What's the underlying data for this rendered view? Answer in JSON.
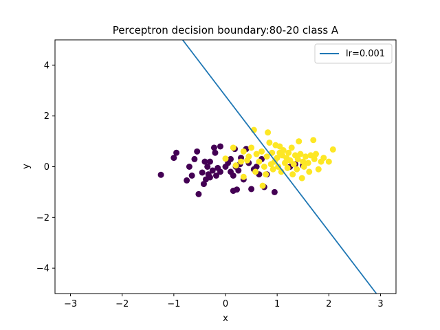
{
  "chart_data": {
    "type": "scatter",
    "title": "Perceptron decision boundary:80-20 class A",
    "xlabel": "x",
    "ylabel": "y",
    "xlim": [
      -3.3,
      3.3
    ],
    "ylim": [
      -5,
      5
    ],
    "xticks": [
      -3,
      -2,
      -1,
      0,
      1,
      2,
      3
    ],
    "xtick_labels": [
      "−3",
      "−2",
      "−1",
      "0",
      "1",
      "2",
      "3"
    ],
    "yticks": [
      -4,
      -2,
      0,
      2,
      4
    ],
    "ytick_labels": [
      "−4",
      "−2",
      "0",
      "2",
      "4"
    ],
    "grid": false,
    "legend_position": "top-right",
    "colors": {
      "class_purple": "#440154",
      "class_yellow": "#fde725",
      "line": "#1f77b4"
    },
    "line": {
      "name": "lr=0.001",
      "points": [
        [
          -0.83,
          5.0
        ],
        [
          2.92,
          -5.0
        ]
      ]
    },
    "series": [
      {
        "color": "class_purple",
        "points": [
          [
            -1.25,
            -0.32
          ],
          [
            -1.0,
            0.35
          ],
          [
            -0.95,
            0.55
          ],
          [
            -0.75,
            -0.54
          ],
          [
            -0.7,
            0.0
          ],
          [
            -0.65,
            -0.35
          ],
          [
            -0.6,
            0.3
          ],
          [
            -0.55,
            0.6
          ],
          [
            -0.52,
            -1.08
          ],
          [
            -0.45,
            -0.23
          ],
          [
            -0.42,
            -0.68
          ],
          [
            -0.4,
            0.2
          ],
          [
            -0.38,
            -0.5
          ],
          [
            -0.35,
            0.0
          ],
          [
            -0.33,
            -0.3
          ],
          [
            -0.3,
            0.2
          ],
          [
            -0.3,
            -0.42
          ],
          [
            -0.25,
            -0.15
          ],
          [
            -0.22,
            0.75
          ],
          [
            -0.2,
            0.55
          ],
          [
            -0.18,
            -0.35
          ],
          [
            -0.15,
            -0.05
          ],
          [
            -0.1,
            0.8
          ],
          [
            -0.1,
            -0.2
          ],
          [
            0.0,
            0.0
          ],
          [
            0.05,
            0.15
          ],
          [
            0.1,
            0.3
          ],
          [
            0.1,
            -0.2
          ],
          [
            0.15,
            -0.35
          ],
          [
            0.18,
            0.7
          ],
          [
            0.2,
            0.0
          ],
          [
            0.22,
            -0.9
          ],
          [
            0.25,
            -0.15
          ],
          [
            0.28,
            0.1
          ],
          [
            0.3,
            0.35
          ],
          [
            0.35,
            -0.5
          ],
          [
            0.4,
            0.7
          ],
          [
            0.45,
            0.15
          ],
          [
            0.5,
            -0.88
          ],
          [
            0.55,
            -0.1
          ],
          [
            0.6,
            0.0
          ],
          [
            0.65,
            -0.3
          ],
          [
            0.7,
            0.3
          ],
          [
            0.75,
            -0.8
          ],
          [
            0.8,
            -0.3
          ],
          [
            0.95,
            -1.0
          ],
          [
            1.25,
            0.0
          ],
          [
            1.35,
            0.1
          ],
          [
            1.5,
            0.05
          ],
          [
            0.15,
            -0.95
          ]
        ]
      },
      {
        "color": "class_yellow",
        "points": [
          [
            0.0,
            0.32
          ],
          [
            0.15,
            0.75
          ],
          [
            0.2,
            0.05
          ],
          [
            0.3,
            0.2
          ],
          [
            0.35,
            -0.4
          ],
          [
            0.42,
            0.25
          ],
          [
            0.45,
            0.4
          ],
          [
            0.5,
            0.75
          ],
          [
            0.55,
            1.45
          ],
          [
            0.6,
            0.5
          ],
          [
            0.65,
            0.2
          ],
          [
            0.7,
            0.6
          ],
          [
            0.72,
            -0.75
          ],
          [
            0.75,
            0.0
          ],
          [
            0.78,
            -0.3
          ],
          [
            0.8,
            0.4
          ],
          [
            0.82,
            1.35
          ],
          [
            0.85,
            0.95
          ],
          [
            0.88,
            0.1
          ],
          [
            0.9,
            0.55
          ],
          [
            0.92,
            -0.1
          ],
          [
            0.95,
            0.2
          ],
          [
            0.97,
            0.85
          ],
          [
            1.0,
            0.35
          ],
          [
            1.02,
            0.0
          ],
          [
            1.05,
            0.8
          ],
          [
            1.08,
            -0.2
          ],
          [
            1.1,
            0.45
          ],
          [
            1.12,
            0.65
          ],
          [
            1.15,
            0.15
          ],
          [
            1.18,
            0.35
          ],
          [
            1.2,
            -0.05
          ],
          [
            1.22,
            0.55
          ],
          [
            1.25,
            0.25
          ],
          [
            1.28,
            0.75
          ],
          [
            1.3,
            -0.3
          ],
          [
            1.32,
            0.1
          ],
          [
            1.35,
            0.45
          ],
          [
            1.38,
            -0.1
          ],
          [
            1.4,
            0.3
          ],
          [
            1.42,
            1.0
          ],
          [
            1.45,
            0.5
          ],
          [
            1.48,
            -0.45
          ],
          [
            1.5,
            0.2
          ],
          [
            1.52,
            0.0
          ],
          [
            1.55,
            0.4
          ],
          [
            1.6,
            0.15
          ],
          [
            1.62,
            -0.2
          ],
          [
            1.65,
            0.45
          ],
          [
            1.7,
            1.05
          ],
          [
            1.72,
            0.3
          ],
          [
            1.75,
            0.5
          ],
          [
            1.8,
            -0.1
          ],
          [
            1.85,
            0.2
          ],
          [
            1.9,
            0.35
          ],
          [
            2.0,
            0.2
          ],
          [
            2.08,
            0.68
          ],
          [
            0.35,
            0.6
          ],
          [
            0.58,
            -0.2
          ],
          [
            1.05,
            0.55
          ]
        ]
      }
    ]
  }
}
